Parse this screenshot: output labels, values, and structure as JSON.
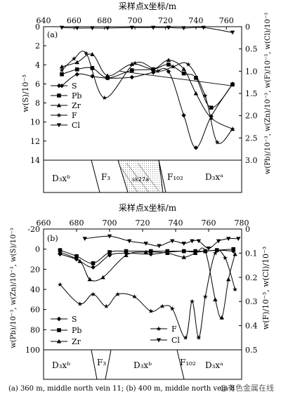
{
  "chart_data": [
    {
      "panel_label": "(a)",
      "type": "line",
      "title": "采样点x坐标/m",
      "x_ticks": [
        "640",
        "660",
        "680",
        "700",
        "720",
        "740",
        "760"
      ],
      "xlim": [
        640,
        770
      ],
      "left_axis": {
        "label": "w(S)/10⁻³",
        "ticks": [
          "0",
          "2",
          "4",
          "6",
          "8",
          "10",
          "12",
          "14"
        ],
        "ylim": [
          0,
          14
        ]
      },
      "right_axis": {
        "label": "w(Pb)/10⁻³, w(Zn)/10⁻³, w(F)/10⁻³, w(Cl)/10⁻³",
        "ticks": [
          "0",
          "0.5",
          "1.0",
          "1.5",
          "2.0",
          "2.5",
          "3.0"
        ],
        "ylim": [
          0,
          3.0
        ]
      },
      "legend": [
        "S",
        "Pb",
        "Zr",
        "F",
        "Cl"
      ],
      "series": [
        {
          "name": "S",
          "axis": "left",
          "marker": "diamond",
          "x": [
            652,
            662,
            672,
            682,
            698,
            712,
            722,
            732,
            740,
            750,
            764
          ],
          "y": [
            6.2,
            5.0,
            5.2,
            5.4,
            5.3,
            4.8,
            4.7,
            9.3,
            12.7,
            9.4,
            6.0
          ]
        },
        {
          "name": "Pb",
          "axis": "right",
          "marker": "square",
          "x": [
            652,
            662,
            672,
            682,
            698,
            712,
            722,
            732,
            740,
            750,
            764
          ],
          "y": [
            1.07,
            0.96,
            0.93,
            1.15,
            0.98,
            0.96,
            0.85,
            1.05,
            1.15,
            1.82,
            1.3
          ]
        },
        {
          "name": "Zr",
          "axis": "right",
          "marker": "triangle-up",
          "x": [
            652,
            662,
            672,
            682,
            698,
            712,
            722,
            732,
            740,
            750,
            764
          ],
          "y": [
            0.9,
            0.8,
            0.62,
            1.1,
            0.84,
            0.95,
            0.75,
            0.95,
            1.5,
            2.05,
            2.3
          ]
        },
        {
          "name": "F",
          "axis": "right",
          "marker": "star",
          "x": [
            652,
            660,
            668,
            680,
            700,
            715,
            725,
            735,
            746,
            754,
            764
          ],
          "y": [
            0.98,
            0.72,
            0.6,
            1.6,
            0.82,
            1.0,
            0.9,
            0.85,
            1.55,
            2.6,
            2.3
          ]
        },
        {
          "name": "Cl",
          "axis": "right",
          "marker": "triangle-down",
          "x": [
            652,
            662,
            672,
            682,
            698,
            712,
            722,
            732,
            745,
            764
          ],
          "y": [
            0.02,
            0.03,
            0.03,
            0.03,
            0.02,
            0.02,
            0.02,
            0.03,
            0.02,
            0.13
          ]
        }
      ],
      "trend_line": {
        "axis": "right",
        "x": [
          690,
          764
        ],
        "y": [
          1.0,
          1.33
        ]
      },
      "section": [
        "D₃xᵇ",
        "F₃",
        "sk27a",
        "F₁₀₂",
        "D₃xᵃ"
      ]
    },
    {
      "panel_label": "(b)",
      "type": "line",
      "title": "采样点x坐标/m",
      "x_ticks": [
        "660",
        "680",
        "700",
        "720",
        "740",
        "760",
        "780"
      ],
      "xlim": [
        660,
        780
      ],
      "left_axis": {
        "label": "w(Pb)/10⁻³, w(Zn)/10⁻³, w(S)/10⁻³",
        "ticks": [
          "-20",
          "0",
          "20",
          "40",
          "60",
          "80",
          "100"
        ],
        "ylim": [
          -20,
          100
        ]
      },
      "right_axis": {
        "label": "w(F)/10⁻³, w(Cl)/10⁻³",
        "ticks": [
          "0",
          "0.1",
          "0.2",
          "0.3",
          "0.4",
          "0.5"
        ],
        "ylim": [
          0,
          0.5
        ]
      },
      "legend": [
        "S",
        "Pb",
        "Zr",
        "F",
        "Cl"
      ],
      "series": [
        {
          "name": "S",
          "axis": "left",
          "marker": "diamond",
          "x": [
            670,
            680,
            690,
            700,
            710,
            725,
            735,
            745,
            752,
            758,
            765,
            775
          ],
          "y": [
            5,
            10,
            18,
            6,
            4,
            5,
            3,
            2,
            3,
            2,
            1,
            2
          ]
        },
        {
          "name": "Pb",
          "axis": "left",
          "marker": "square",
          "x": [
            670,
            680,
            690,
            700,
            710,
            725,
            735,
            745,
            752,
            758,
            765,
            775
          ],
          "y": [
            1,
            7,
            14,
            3,
            2,
            2,
            2,
            2,
            2,
            2,
            1,
            0
          ]
        },
        {
          "name": "Zr",
          "axis": "left",
          "marker": "triangle-up",
          "x": [
            670,
            682,
            688,
            696,
            710,
            722,
            735,
            745,
            752,
            758,
            764,
            768,
            772,
            776
          ],
          "y": [
            3,
            12,
            30,
            28,
            6,
            3,
            4,
            8,
            4,
            2,
            50,
            68,
            30,
            5
          ]
        },
        {
          "name": "F",
          "axis": "right",
          "marker": "star",
          "x": [
            670,
            682,
            690,
            698,
            705,
            715,
            725,
            732,
            738,
            746,
            750,
            754,
            758,
            764,
            770,
            776
          ],
          "y": [
            0.23,
            0.31,
            0.27,
            0.32,
            0.27,
            0.28,
            0.34,
            0.32,
            0.33,
            0.45,
            0.3,
            0.45,
            0.28,
            0.1,
            0.12,
            0.25
          ]
        },
        {
          "name": "Cl",
          "axis": "right",
          "marker": "triangle-down",
          "x": [
            685,
            700,
            712,
            722,
            730,
            738,
            745,
            750,
            754,
            760,
            766,
            772,
            778
          ],
          "y": [
            0.04,
            0.03,
            0.05,
            0.06,
            0.07,
            0.05,
            0.06,
            0.05,
            0.05,
            0.08,
            0.05,
            0.04,
            0.04
          ]
        }
      ],
      "section": [
        "D₃xᵇ",
        "F₃",
        "D₃xᵇ",
        "F₁₀₂",
        "D₃xᵃ"
      ]
    }
  ],
  "caption": "(a) 360 m, middle north vein 11; (b) 400 m, middle north vein 8",
  "watermark": "@有色金属在线"
}
